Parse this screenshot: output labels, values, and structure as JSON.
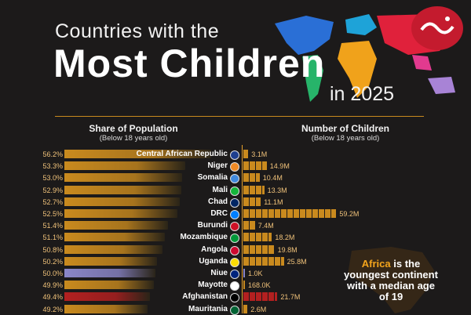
{
  "title": {
    "line1": "Countries with the",
    "line2": "Most Children",
    "line3": "in 2025"
  },
  "left_header": {
    "title": "Share of Population",
    "subtitle": "(Below 18 years old)"
  },
  "right_header": {
    "title": "Number of Children",
    "subtitle": "(Below 18 years old)"
  },
  "callout": {
    "highlight": "Africa",
    "text": "is the youngest continent with a median age of 19"
  },
  "colors": {
    "default_bar": "#c98a1e",
    "niue_bar": "#8a86c8",
    "afghanistan_bar": "#b32020",
    "accent": "#f4a51c"
  },
  "chart_data": {
    "type": "bar",
    "categories": [
      "Central African Republic",
      "Niger",
      "Somalia",
      "Mali",
      "Chad",
      "DRC",
      "Burundi",
      "Mozambique",
      "Angola",
      "Uganda",
      "Niue",
      "Mayotte",
      "Afghanistan",
      "Mauritania"
    ],
    "series": [
      {
        "values": [
          56.2,
          53.3,
          53.0,
          52.9,
          52.7,
          52.5,
          51.4,
          51.1,
          50.8,
          50.2,
          50.0,
          49.9,
          49.4,
          49.2
        ],
        "labels": [
          "56.2%",
          "53.3%",
          "53.0%",
          "52.9%",
          "52.7%",
          "52.5%",
          "51.4%",
          "51.1%",
          "50.8%",
          "50.2%",
          "50.0%",
          "49.9%",
          "49.4%",
          "49.2%"
        ]
      },
      {
        "values": [
          3.1,
          14.9,
          10.4,
          13.3,
          11.1,
          59.2,
          7.4,
          18.2,
          19.8,
          25.8,
          0.001,
          0.168,
          21.7,
          2.6
        ],
        "labels": [
          "3.1M",
          "14.9M",
          "10.4M",
          "13.3M",
          "11.1M",
          "59.2M",
          "7.4M",
          "18.2M",
          "19.8M",
          "25.8M",
          "1.0K",
          "168.0K",
          "21.7M",
          "2.6M"
        ]
      }
    ],
    "highlight": {
      "Niue": "#8a86c8",
      "Afghanistan": "#b32020"
    }
  }
}
